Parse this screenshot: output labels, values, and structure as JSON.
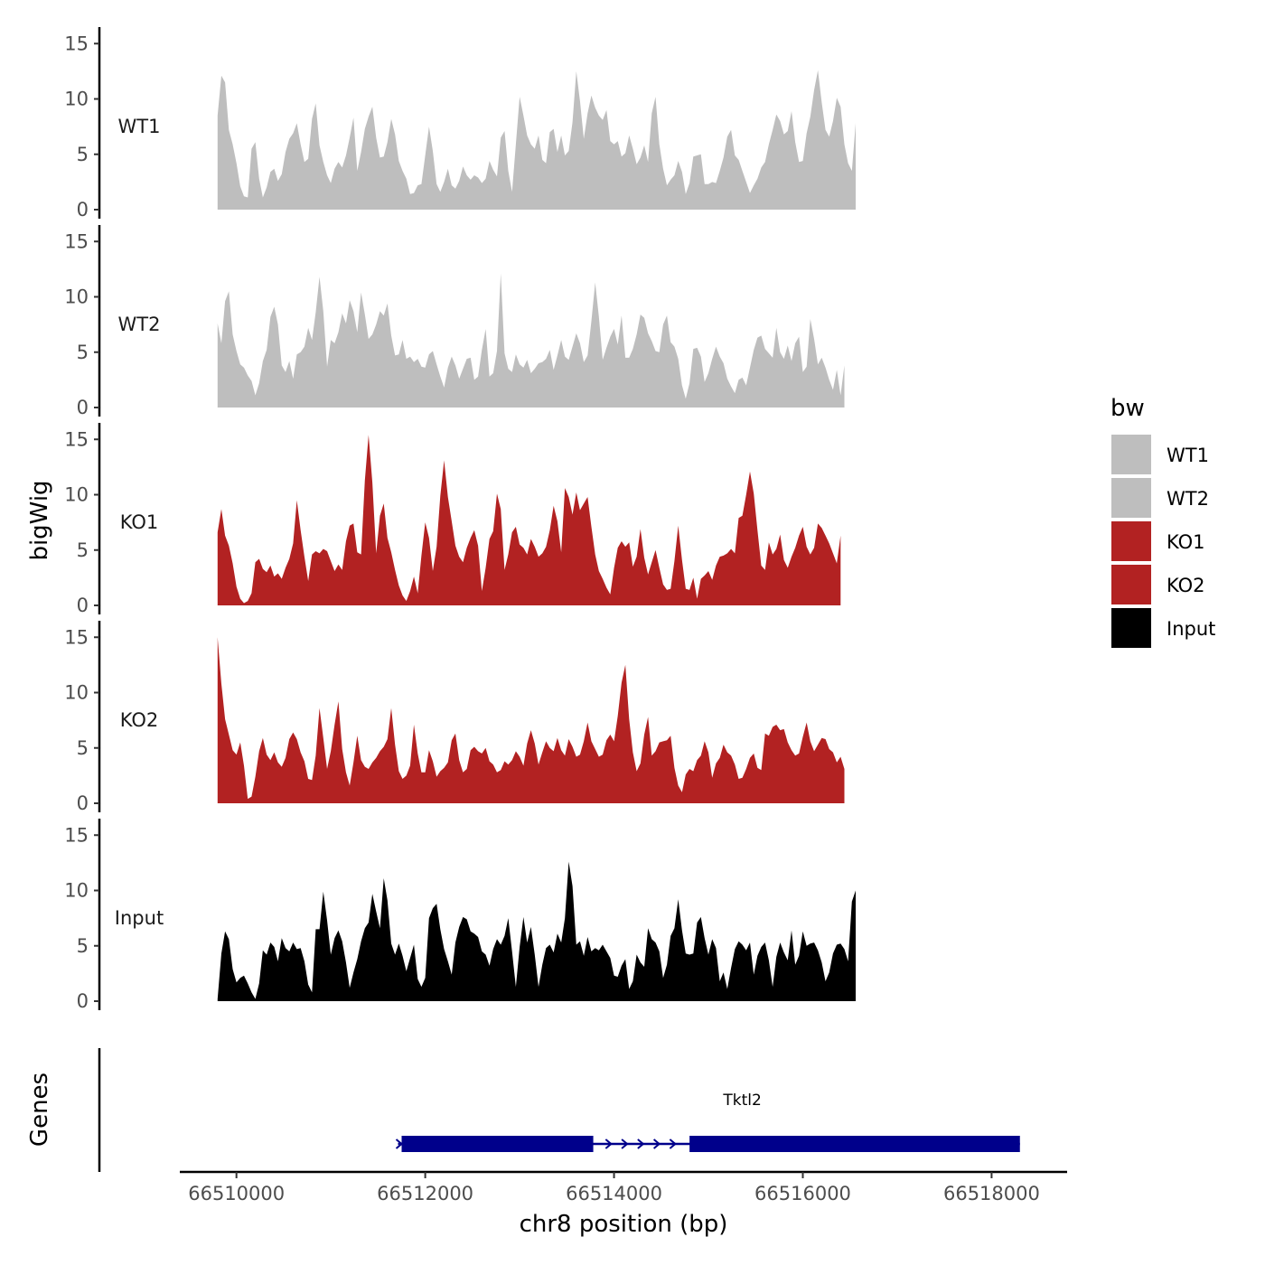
{
  "chart_data": {
    "type": "area",
    "chromosome": "chr8",
    "xlabel": "chr8 position (bp)",
    "ylabel": "bigWig",
    "genes_label": "Genes",
    "x_ticks": [
      66510000,
      66512000,
      66514000,
      66516000,
      66518000
    ],
    "x_tick_labels": [
      "66510000",
      "66512000",
      "66514000",
      "66516000",
      "66518000"
    ],
    "xlim": [
      66509400,
      66518800
    ],
    "ylim": [
      0,
      16
    ],
    "y_ticks": [
      0,
      5,
      10,
      15
    ],
    "y_tick_labels": [
      "0",
      "5",
      "10",
      "15"
    ],
    "x_start": 66509800,
    "x_step": 40,
    "tracks": [
      {
        "name": "WT1",
        "color": "#bebebe",
        "values": [
          8.5,
          12.1,
          11.5,
          7.2,
          5.9,
          4.2,
          2.1,
          1.2,
          1.1,
          5.5,
          6.1,
          2.8,
          1.1,
          2.0,
          3.4,
          3.7,
          2.6,
          3.2,
          5.2,
          6.4,
          6.9,
          7.8,
          5.9,
          4.3,
          4.6,
          8.2,
          9.6,
          5.8,
          4.3,
          3.1,
          2.4,
          3.7,
          4.3,
          3.8,
          4.9,
          6.5,
          8.3,
          3.5,
          5.2,
          7.3,
          8.4,
          9.3,
          6.5,
          4.7,
          4.8,
          6.1,
          8.2,
          6.8,
          4.4,
          3.5,
          2.8,
          1.4,
          1.5,
          2.2,
          2.3,
          4.9,
          7.5,
          5.3,
          2.3,
          1.6,
          2.5,
          3.7,
          2.2,
          1.9,
          2.6,
          3.9,
          3.1,
          2.7,
          3.1,
          2.9,
          2.4,
          2.8,
          4.4,
          3.6,
          3.0,
          6.5,
          7.1,
          3.5,
          1.6,
          5.9,
          10.2,
          8.5,
          6.7,
          5.9,
          5.5,
          6.7,
          4.5,
          4.2,
          7.0,
          7.3,
          5.2,
          6.7,
          4.9,
          5.3,
          7.9,
          12.5,
          9.8,
          6.4,
          8.7,
          10.3,
          9.2,
          8.5,
          8.1,
          9.0,
          6.2,
          5.9,
          6.2,
          4.8,
          5.1,
          6.7,
          5.5,
          4.1,
          4.7,
          5.8,
          4.3,
          8.7,
          10.2,
          5.9,
          3.7,
          2.2,
          2.7,
          3.1,
          4.4,
          3.4,
          1.4,
          2.4,
          4.8,
          4.9,
          5.0,
          2.3,
          2.3,
          2.5,
          2.4,
          3.5,
          4.7,
          6.6,
          7.2,
          4.9,
          4.5,
          3.5,
          2.5,
          1.5,
          2.2,
          2.8,
          3.8,
          4.3,
          5.9,
          7.2,
          8.6,
          8.0,
          6.8,
          7.1,
          8.9,
          6.1,
          4.3,
          4.4,
          6.9,
          8.4,
          10.8,
          12.6,
          9.7,
          7.2,
          6.6,
          8.0,
          10.1,
          9.3,
          5.9,
          4.2,
          3.5,
          7.8
        ]
      },
      {
        "name": "WT2",
        "color": "#bebebe",
        "values": [
          7.6,
          5.8,
          9.6,
          10.5,
          6.6,
          5.1,
          3.9,
          3.6,
          2.9,
          2.4,
          1.1,
          2.2,
          4.2,
          5.2,
          8.2,
          9.1,
          7.5,
          3.8,
          3.2,
          4.2,
          2.6,
          4.8,
          5.0,
          5.5,
          7.2,
          6.1,
          8.6,
          11.8,
          8.7,
          3.7,
          6.1,
          5.8,
          6.8,
          8.5,
          7.6,
          9.7,
          8.7,
          6.8,
          10.4,
          8.4,
          6.2,
          6.6,
          7.5,
          8.7,
          8.3,
          9.4,
          6.5,
          4.7,
          4.8,
          6.1,
          4.4,
          4.6,
          4.1,
          4.4,
          3.7,
          3.6,
          4.8,
          5.1,
          3.9,
          2.8,
          1.8,
          3.6,
          4.6,
          3.8,
          2.6,
          3.5,
          4.4,
          4.5,
          2.5,
          2.8,
          5.2,
          7.1,
          2.8,
          3.1,
          5.1,
          12.1,
          4.9,
          3.5,
          3.2,
          4.8,
          3.9,
          3.6,
          4.3,
          3.1,
          3.5,
          4.0,
          4.1,
          4.4,
          5.2,
          3.4,
          4.7,
          6.1,
          4.6,
          4.3,
          5.5,
          6.7,
          5.8,
          4.1,
          4.7,
          7.8,
          11.3,
          8.2,
          4.3,
          5.4,
          6.4,
          7.1,
          5.7,
          8.3,
          4.5,
          4.5,
          5.3,
          6.6,
          8.4,
          8.1,
          6.7,
          6.0,
          5.1,
          5.0,
          7.5,
          8.3,
          5.9,
          5.5,
          4.4,
          2.0,
          0.8,
          2.2,
          5.3,
          5.4,
          4.6,
          2.3,
          3.1,
          4.4,
          5.5,
          4.6,
          4.0,
          2.6,
          1.9,
          1.3,
          2.5,
          2.7,
          2.0,
          3.6,
          5.2,
          6.3,
          6.5,
          5.3,
          4.9,
          4.5,
          7.2,
          5.0,
          4.4,
          5.6,
          4.2,
          5.8,
          6.4,
          3.2,
          3.7,
          8.0,
          6.2,
          3.9,
          4.5,
          3.6,
          2.5,
          1.6,
          3.4,
          1.1,
          3.8
        ]
      },
      {
        "name": "KO1",
        "color": "#b22222",
        "values": [
          6.6,
          8.7,
          6.3,
          5.4,
          3.8,
          1.7,
          0.6,
          0.2,
          0.4,
          1.1,
          3.9,
          4.2,
          3.3,
          3.0,
          3.6,
          2.6,
          2.9,
          2.4,
          3.4,
          4.2,
          5.6,
          9.5,
          6.8,
          4.4,
          2.2,
          4.6,
          4.9,
          4.7,
          5.1,
          4.9,
          4.0,
          3.1,
          3.7,
          3.2,
          5.8,
          7.2,
          7.4,
          4.8,
          4.6,
          11.3,
          15.4,
          11.1,
          4.7,
          8.1,
          9.2,
          6.1,
          4.8,
          3.2,
          1.8,
          0.9,
          0.4,
          1.3,
          2.6,
          1.1,
          4.5,
          7.5,
          6.1,
          3.1,
          5.3,
          9.9,
          13.1,
          9.8,
          7.6,
          5.4,
          4.4,
          3.9,
          5.2,
          6.1,
          6.8,
          5.4,
          1.3,
          3.4,
          6.0,
          6.7,
          10.1,
          8.7,
          3.2,
          4.6,
          6.6,
          7.1,
          5.5,
          5.2,
          4.6,
          6.0,
          5.3,
          4.4,
          4.7,
          5.3,
          6.8,
          9.0,
          7.6,
          4.8,
          10.6,
          9.8,
          8.2,
          10.2,
          8.6,
          9.2,
          9.8,
          7.1,
          4.6,
          3.1,
          2.4,
          1.6,
          1.0,
          3.4,
          5.2,
          5.8,
          5.3,
          5.7,
          3.5,
          4.4,
          6.9,
          4.3,
          2.8,
          3.9,
          5.0,
          3.4,
          1.9,
          1.4,
          1.5,
          4.0,
          7.2,
          4.1,
          1.5,
          1.4,
          2.5,
          0.6,
          2.4,
          2.7,
          3.1,
          2.3,
          3.6,
          4.4,
          4.5,
          4.7,
          5.1,
          4.7,
          7.9,
          8.1,
          10.0,
          12.1,
          10.1,
          6.8,
          3.6,
          3.2,
          5.7,
          4.6,
          5.1,
          6.4,
          4.1,
          3.4,
          4.4,
          5.2,
          6.3,
          7.1,
          5.3,
          4.6,
          5.2,
          7.4,
          7.0,
          6.3,
          5.6,
          4.7,
          3.8,
          6.3
        ]
      },
      {
        "name": "KO2",
        "color": "#b22222",
        "values": [
          15.0,
          10.8,
          7.6,
          6.2,
          4.8,
          4.4,
          5.5,
          3.4,
          0.4,
          0.6,
          2.4,
          4.7,
          5.9,
          4.4,
          3.9,
          4.6,
          3.7,
          3.3,
          4.1,
          5.8,
          6.4,
          5.8,
          4.6,
          3.8,
          2.2,
          2.1,
          4.3,
          8.6,
          5.9,
          3.1,
          4.7,
          7.1,
          9.2,
          4.9,
          2.8,
          1.6,
          3.7,
          6.1,
          3.9,
          3.3,
          3.1,
          3.7,
          4.1,
          4.7,
          5.1,
          5.8,
          8.6,
          5.3,
          2.9,
          2.2,
          2.5,
          3.4,
          7.1,
          4.5,
          2.8,
          2.8,
          4.8,
          3.8,
          2.4,
          2.9,
          3.2,
          3.7,
          5.7,
          6.3,
          3.9,
          2.8,
          3.1,
          4.8,
          5.1,
          4.7,
          4.5,
          5.0,
          3.8,
          3.5,
          2.8,
          3.0,
          3.8,
          3.5,
          3.9,
          4.7,
          4.2,
          3.4,
          5.4,
          6.6,
          5.4,
          3.5,
          4.6,
          5.6,
          5.0,
          4.7,
          5.9,
          4.8,
          4.3,
          5.8,
          5.1,
          4.2,
          4.4,
          5.6,
          7.3,
          5.6,
          4.9,
          4.2,
          4.4,
          5.7,
          6.2,
          5.6,
          7.9,
          10.9,
          12.5,
          7.6,
          4.6,
          2.9,
          3.6,
          6.2,
          7.8,
          4.3,
          4.7,
          5.5,
          5.6,
          5.7,
          6.1,
          3.2,
          1.6,
          1.0,
          2.6,
          3.1,
          2.9,
          3.9,
          4.3,
          5.6,
          4.6,
          2.3,
          3.6,
          4.1,
          5.3,
          4.6,
          4.3,
          3.5,
          2.2,
          2.3,
          3.1,
          4.1,
          4.5,
          3.2,
          3.0,
          6.3,
          6.1,
          6.9,
          7.1,
          6.6,
          6.7,
          5.5,
          4.8,
          4.3,
          4.5,
          6.0,
          7.3,
          5.6,
          4.7,
          5.3,
          5.9,
          5.8,
          4.9,
          4.6,
          3.7,
          4.2,
          3.1
        ]
      },
      {
        "name": "Input",
        "color": "#000000",
        "values": [
          0.2,
          4.3,
          6.3,
          5.6,
          2.9,
          1.7,
          2.1,
          2.3,
          1.6,
          0.8,
          0.2,
          1.6,
          4.6,
          4.2,
          5.3,
          4.9,
          3.6,
          5.7,
          4.8,
          4.5,
          5.3,
          4.7,
          4.8,
          3.6,
          1.5,
          0.8,
          6.5,
          6.5,
          9.9,
          7.3,
          4.2,
          5.7,
          6.4,
          5.4,
          3.5,
          1.2,
          2.6,
          3.8,
          5.4,
          6.6,
          7.1,
          9.7,
          8.1,
          6.6,
          11.1,
          9.1,
          5.2,
          4.2,
          5.2,
          4.1,
          2.7,
          3.9,
          5.1,
          2.0,
          1.3,
          2.1,
          7.5,
          8.4,
          8.8,
          6.5,
          4.7,
          3.6,
          2.4,
          5.3,
          6.7,
          7.6,
          7.4,
          6.3,
          6.1,
          5.8,
          4.5,
          4.2,
          3.2,
          4.7,
          5.6,
          5.1,
          5.9,
          7.5,
          4.5,
          1.3,
          4.9,
          7.6,
          5.3,
          6.7,
          4.2,
          1.3,
          3.3,
          4.8,
          5.1,
          4.4,
          6.1,
          5.3,
          7.5,
          12.6,
          10.4,
          5.1,
          5.4,
          4.1,
          5.8,
          4.5,
          4.8,
          4.6,
          5.1,
          4.5,
          3.9,
          2.3,
          2.2,
          3.2,
          3.8,
          1.1,
          1.8,
          4.2,
          3.5,
          3.1,
          6.6,
          5.6,
          5.3,
          4.5,
          2.1,
          3.3,
          5.9,
          6.6,
          9.2,
          6.4,
          4.3,
          4.2,
          4.3,
          7.1,
          7.6,
          5.7,
          4.2,
          5.6,
          4.8,
          1.8,
          2.6,
          1.1,
          3.0,
          4.7,
          5.4,
          5.1,
          4.6,
          5.3,
          2.4,
          4.1,
          4.9,
          5.3,
          3.7,
          1.3,
          4.0,
          5.3,
          4.4,
          3.7,
          6.4,
          3.3,
          4.1,
          6.3,
          5.0,
          5.2,
          5.3,
          4.6,
          3.5,
          1.8,
          2.6,
          4.3,
          5.1,
          5.2,
          4.7,
          3.6,
          9.0,
          10.0
        ]
      }
    ],
    "genes": [
      {
        "name": "Tktl2",
        "color": "#00008b",
        "start": 66511750,
        "end": 66518300,
        "strand": "+",
        "exons": [
          {
            "start": 66511750,
            "end": 66513780
          },
          {
            "start": 66514800,
            "end": 66518300
          }
        ]
      }
    ],
    "legend": {
      "title": "bw",
      "position": "right",
      "entries": [
        {
          "label": "WT1",
          "color": "#bebebe"
        },
        {
          "label": "WT2",
          "color": "#bebebe"
        },
        {
          "label": "KO1",
          "color": "#b22222"
        },
        {
          "label": "KO2",
          "color": "#b22222"
        },
        {
          "label": "Input",
          "color": "#000000"
        }
      ]
    }
  }
}
